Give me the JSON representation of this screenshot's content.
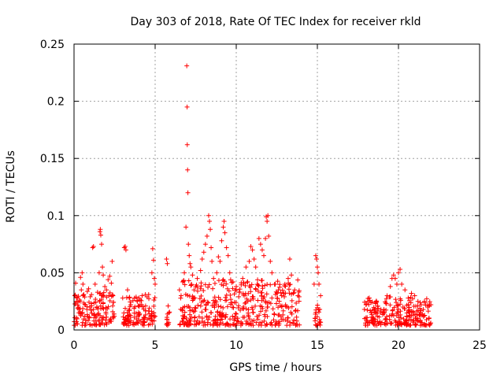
{
  "chart_data": {
    "type": "scatter",
    "title": "Day 303 of 2018, Rate Of TEC Index for receiver rkld",
    "xlabel": "GPS time / hours",
    "ylabel": "ROTI / TECUs",
    "xlim": [
      0,
      25
    ],
    "ylim": [
      0,
      0.25
    ],
    "x_ticks": [
      0,
      5,
      10,
      15,
      20,
      25
    ],
    "y_ticks": [
      0,
      0.05,
      0.1,
      0.15,
      0.2,
      0.25
    ],
    "x_tick_labels": [
      "0",
      "5",
      "10",
      "15",
      "20",
      "25"
    ],
    "y_tick_labels": [
      "0",
      "0.05",
      "0.1",
      "0.15",
      "0.2",
      "0.25"
    ],
    "grid": true,
    "marker": "+",
    "series_color": "#ff0000",
    "series": [
      {
        "name": "ROTI",
        "points": [
          [
            0.05,
            0.03
          ],
          [
            0.1,
            0.041
          ],
          [
            0.15,
            0.025
          ],
          [
            0.2,
            0.028
          ],
          [
            0.3,
            0.015
          ],
          [
            0.4,
            0.046
          ],
          [
            0.45,
            0.035
          ],
          [
            0.5,
            0.05
          ],
          [
            0.55,
            0.04
          ],
          [
            0.6,
            0.031
          ],
          [
            0.7,
            0.022
          ],
          [
            0.8,
            0.018
          ],
          [
            0.9,
            0.036
          ],
          [
            1.0,
            0.029
          ],
          [
            1.15,
            0.072
          ],
          [
            1.2,
            0.073
          ],
          [
            1.3,
            0.04
          ],
          [
            1.45,
            0.033
          ],
          [
            1.55,
            0.05
          ],
          [
            1.6,
            0.086
          ],
          [
            1.62,
            0.088
          ],
          [
            1.65,
            0.083
          ],
          [
            1.7,
            0.075
          ],
          [
            1.75,
            0.055
          ],
          [
            1.8,
            0.048
          ],
          [
            1.9,
            0.038
          ],
          [
            2.0,
            0.035
          ],
          [
            2.1,
            0.044
          ],
          [
            2.2,
            0.047
          ],
          [
            2.3,
            0.041
          ],
          [
            2.35,
            0.06
          ],
          [
            2.4,
            0.03
          ],
          [
            3.0,
            0.028
          ],
          [
            3.1,
            0.072
          ],
          [
            3.15,
            0.073
          ],
          [
            3.2,
            0.07
          ],
          [
            3.3,
            0.035
          ],
          [
            3.4,
            0.028
          ],
          [
            3.5,
            0.022
          ],
          [
            3.7,
            0.019
          ],
          [
            3.9,
            0.025
          ],
          [
            4.0,
            0.028
          ],
          [
            4.2,
            0.03
          ],
          [
            4.4,
            0.031
          ],
          [
            4.6,
            0.031
          ],
          [
            4.8,
            0.05
          ],
          [
            4.85,
            0.071
          ],
          [
            4.9,
            0.061
          ],
          [
            4.95,
            0.045
          ],
          [
            5.0,
            0.04
          ],
          [
            5.7,
            0.062
          ],
          [
            5.75,
            0.058
          ],
          [
            5.8,
            0.021
          ],
          [
            5.85,
            0.015
          ],
          [
            6.5,
            0.035
          ],
          [
            6.6,
            0.03
          ],
          [
            6.7,
            0.042
          ],
          [
            6.8,
            0.05
          ],
          [
            6.9,
            0.09
          ],
          [
            6.95,
            0.231
          ],
          [
            6.97,
            0.195
          ],
          [
            6.98,
            0.162
          ],
          [
            7.0,
            0.14
          ],
          [
            7.02,
            0.12
          ],
          [
            7.05,
            0.075
          ],
          [
            7.1,
            0.065
          ],
          [
            7.15,
            0.058
          ],
          [
            7.2,
            0.055
          ],
          [
            7.3,
            0.048
          ],
          [
            7.4,
            0.035
          ],
          [
            7.5,
            0.038
          ],
          [
            7.6,
            0.045
          ],
          [
            7.8,
            0.052
          ],
          [
            7.9,
            0.062
          ],
          [
            8.0,
            0.068
          ],
          [
            8.1,
            0.075
          ],
          [
            8.2,
            0.082
          ],
          [
            8.3,
            0.1
          ],
          [
            8.35,
            0.095
          ],
          [
            8.4,
            0.088
          ],
          [
            8.45,
            0.072
          ],
          [
            8.5,
            0.06
          ],
          [
            8.6,
            0.045
          ],
          [
            8.8,
            0.05
          ],
          [
            8.9,
            0.064
          ],
          [
            9.0,
            0.06
          ],
          [
            9.1,
            0.078
          ],
          [
            9.2,
            0.09
          ],
          [
            9.25,
            0.095
          ],
          [
            9.3,
            0.085
          ],
          [
            9.4,
            0.072
          ],
          [
            9.5,
            0.065
          ],
          [
            9.6,
            0.05
          ],
          [
            9.8,
            0.042
          ],
          [
            10.0,
            0.038
          ],
          [
            10.2,
            0.033
          ],
          [
            10.4,
            0.045
          ],
          [
            10.6,
            0.055
          ],
          [
            10.8,
            0.06
          ],
          [
            10.9,
            0.073
          ],
          [
            11.0,
            0.07
          ],
          [
            11.1,
            0.062
          ],
          [
            11.2,
            0.055
          ],
          [
            11.4,
            0.08
          ],
          [
            11.5,
            0.075
          ],
          [
            11.6,
            0.07
          ],
          [
            11.7,
            0.065
          ],
          [
            11.8,
            0.08
          ],
          [
            11.85,
            0.099
          ],
          [
            11.9,
            0.095
          ],
          [
            11.95,
            0.1
          ],
          [
            12.0,
            0.082
          ],
          [
            12.1,
            0.06
          ],
          [
            12.2,
            0.05
          ],
          [
            12.4,
            0.04
          ],
          [
            12.6,
            0.035
          ],
          [
            12.8,
            0.03
          ],
          [
            13.0,
            0.04
          ],
          [
            13.2,
            0.045
          ],
          [
            13.3,
            0.062
          ],
          [
            13.4,
            0.048
          ],
          [
            13.6,
            0.035
          ],
          [
            13.8,
            0.03
          ],
          [
            14.8,
            0.04
          ],
          [
            14.9,
            0.065
          ],
          [
            14.95,
            0.062
          ],
          [
            15.0,
            0.055
          ],
          [
            15.05,
            0.05
          ],
          [
            15.1,
            0.04
          ],
          [
            15.2,
            0.03
          ],
          [
            17.9,
            0.018
          ],
          [
            18.0,
            0.022
          ],
          [
            18.1,
            0.025
          ],
          [
            18.2,
            0.028
          ],
          [
            18.3,
            0.024
          ],
          [
            18.5,
            0.015
          ],
          [
            18.7,
            0.012
          ],
          [
            18.9,
            0.015
          ],
          [
            19.1,
            0.018
          ],
          [
            19.3,
            0.03
          ],
          [
            19.5,
            0.038
          ],
          [
            19.6,
            0.045
          ],
          [
            19.7,
            0.048
          ],
          [
            19.8,
            0.045
          ],
          [
            19.9,
            0.04
          ],
          [
            20.0,
            0.05
          ],
          [
            20.1,
            0.053
          ],
          [
            20.2,
            0.04
          ],
          [
            20.4,
            0.035
          ],
          [
            20.6,
            0.028
          ],
          [
            20.8,
            0.032
          ],
          [
            21.0,
            0.03
          ],
          [
            21.2,
            0.025
          ],
          [
            21.4,
            0.022
          ],
          [
            21.6,
            0.025
          ],
          [
            21.8,
            0.02
          ],
          [
            22.0,
            0.022
          ]
        ]
      }
    ]
  }
}
